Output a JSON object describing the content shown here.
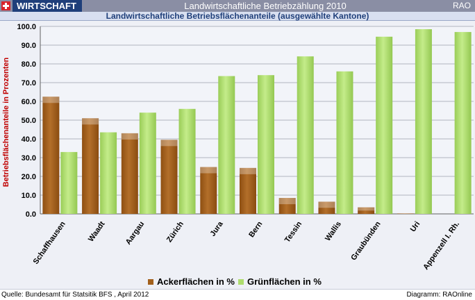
{
  "header": {
    "section_label": "WIRTSCHAFT",
    "title": "Landwirtschaftliche Betriebzählung 2010",
    "brand": "RAO",
    "subtitle": "Landwirtschaftliche Betriebsflächenanteile (ausgewählte Kantone)"
  },
  "footer": {
    "source": "Quelle: Bundesamt für Statsitik BFS , April 2012",
    "credit": "Diagramm: RAOnline"
  },
  "colors": {
    "header_bg": "#8a8ea4",
    "section_bg": "#1f3f7a",
    "acker": "#a2601c",
    "gruen": "#aedd6e",
    "ylabel": "#c00000"
  },
  "chart_data": {
    "type": "bar",
    "title": "Landwirtschaftliche Betriebsflächenanteile (ausgewählte Kantone)",
    "xlabel": "",
    "ylabel": "Betriebsflächenanteile in Prozenten",
    "ylim": [
      0,
      100
    ],
    "yticks": [
      0,
      10,
      20,
      30,
      40,
      50,
      60,
      70,
      80,
      90,
      100
    ],
    "ytick_labels": [
      "0.0",
      "10.0",
      "20.0",
      "30.0",
      "40.0",
      "50.0",
      "60.0",
      "70.0",
      "80.0",
      "90.0",
      "100.0"
    ],
    "grid": true,
    "legend_position": "bottom",
    "categories": [
      "Schaffhausen",
      "Waadt",
      "Aargau",
      "Zürich",
      "Jura",
      "Bern",
      "Tessin",
      "Wallis",
      "Graubünden",
      "Uri",
      "Appenzell I. Rh."
    ],
    "series": [
      {
        "name": "Ackerflächen in %",
        "values": [
          62.5,
          51.0,
          43.0,
          39.5,
          25.0,
          24.5,
          8.5,
          6.5,
          3.5,
          0.2,
          0.0
        ]
      },
      {
        "name": "Grünflächen in %",
        "values": [
          33.0,
          43.5,
          54.0,
          56.0,
          73.5,
          74.0,
          84.0,
          76.0,
          94.5,
          98.5,
          97.0
        ]
      }
    ]
  }
}
